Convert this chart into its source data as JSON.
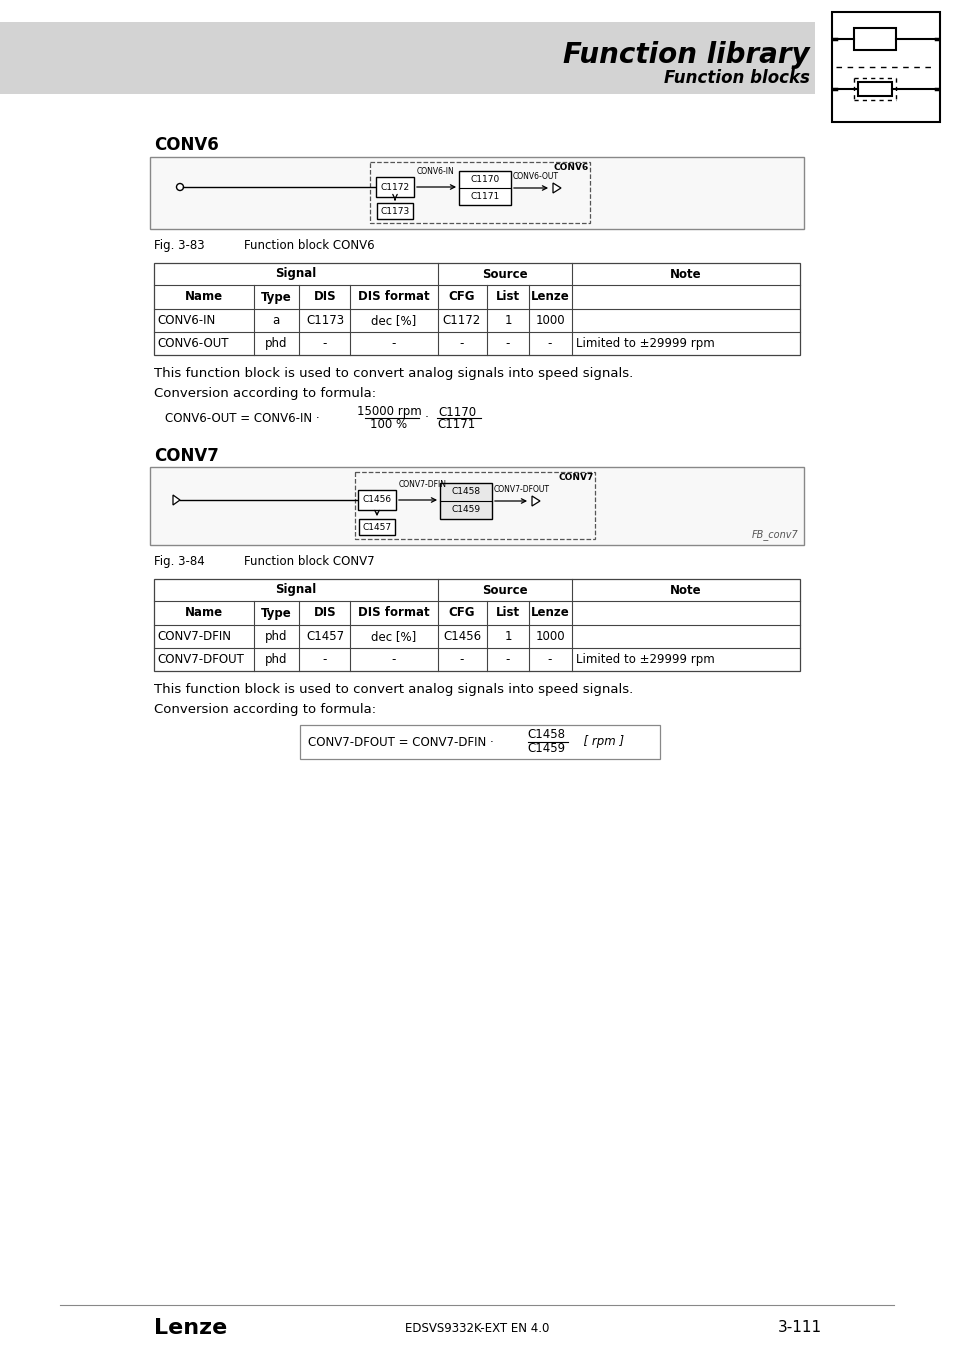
{
  "title": "Function library",
  "subtitle": "Function blocks",
  "conv6_heading": "CONV6",
  "conv7_heading": "CONV7",
  "fig83_label": "Fig. 3-83",
  "fig83_text": "Function block CONV6",
  "fig84_label": "Fig. 3-84",
  "fig84_text": "Function block CONV7",
  "conv6_table_rows": [
    [
      "CONV6-IN",
      "a",
      "C1173",
      "dec [%]",
      "C1172",
      "1",
      "1000",
      ""
    ],
    [
      "CONV6-OUT",
      "phd",
      "-",
      "-",
      "-",
      "-",
      "-",
      "Limited to ±29999 rpm"
    ]
  ],
  "conv7_table_rows": [
    [
      "CONV7-DFIN",
      "phd",
      "C1457",
      "dec [%]",
      "C1456",
      "1",
      "1000",
      ""
    ],
    [
      "CONV7-DFOUT",
      "phd",
      "-",
      "-",
      "-",
      "-",
      "-",
      "Limited to ±29999 rpm"
    ]
  ],
  "text1": "This function block is used to convert analog signals into speed signals.",
  "text2": "Conversion according to formula:",
  "footer_left": "Lenze",
  "footer_center": "EDSVS9332K-EXT EN 4.0",
  "footer_right": "3-111",
  "fb_conv7_label": "FB_conv7",
  "header_gray": "#d3d3d3",
  "table_border": "#444444",
  "diag_border": "#888888",
  "diag_bg": "#f8f8f8"
}
